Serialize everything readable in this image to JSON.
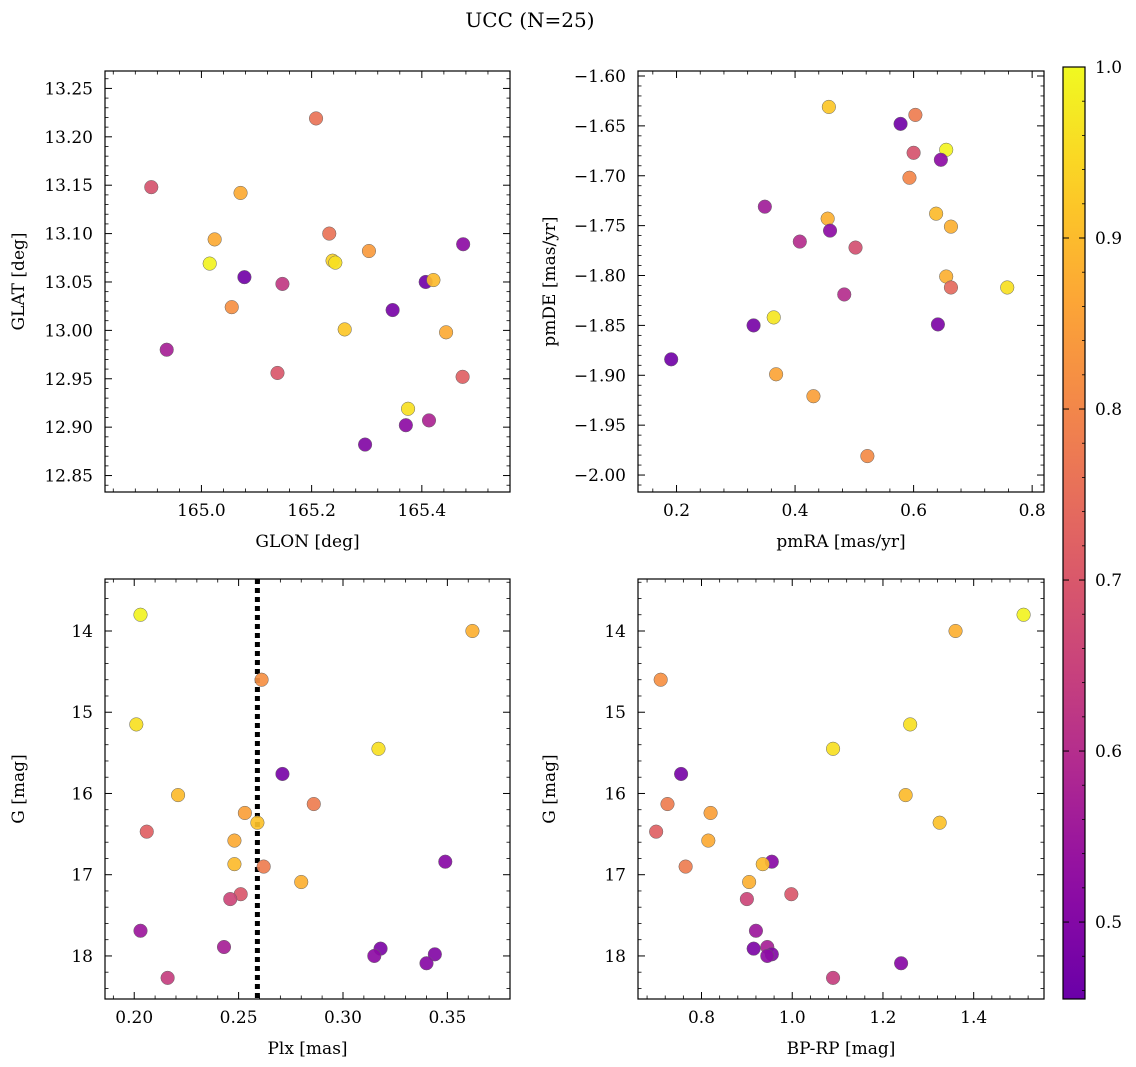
{
  "figure": {
    "title": "UCC (N=25)"
  },
  "colorbar": {
    "colormap": "plasma",
    "range": [
      0.455,
      1.0
    ],
    "ticks": [
      0.5,
      0.6,
      0.7,
      0.8,
      0.9,
      1.0
    ],
    "tick_labels": [
      "0.5",
      "0.6",
      "0.7",
      "0.8",
      "0.9",
      "1.0"
    ]
  },
  "chart_data": [
    {
      "type": "scatter",
      "xlabel": "GLON [deg]",
      "ylabel": "GLAT [deg]",
      "xlim": [
        164.825,
        165.56
      ],
      "ylim": [
        12.833,
        13.268
      ],
      "xticks": [
        165.0,
        165.2,
        165.4
      ],
      "xtick_labels": [
        "165.0",
        "165.2",
        "165.4"
      ],
      "yticks": [
        12.85,
        12.9,
        12.95,
        13.0,
        13.05,
        13.1,
        13.15,
        13.2,
        13.25
      ],
      "ytick_labels": [
        "12.85",
        "12.90",
        "12.95",
        "13.00",
        "13.05",
        "13.10",
        "13.15",
        "13.20",
        "13.25"
      ],
      "points": [
        {
          "x": 165.208,
          "y": 13.219,
          "c": 0.76
        },
        {
          "x": 164.909,
          "y": 13.148,
          "c": 0.69
        },
        {
          "x": 165.071,
          "y": 13.142,
          "c": 0.87
        },
        {
          "x": 165.232,
          "y": 13.1,
          "c": 0.76
        },
        {
          "x": 165.475,
          "y": 13.089,
          "c": 0.52
        },
        {
          "x": 165.024,
          "y": 13.094,
          "c": 0.87
        },
        {
          "x": 165.304,
          "y": 13.082,
          "c": 0.84
        },
        {
          "x": 165.238,
          "y": 13.072,
          "c": 0.94
        },
        {
          "x": 165.015,
          "y": 13.069,
          "c": 0.99
        },
        {
          "x": 165.078,
          "y": 13.055,
          "c": 0.47
        },
        {
          "x": 165.147,
          "y": 13.048,
          "c": 0.63
        },
        {
          "x": 165.407,
          "y": 13.05,
          "c": 0.47
        },
        {
          "x": 165.421,
          "y": 13.052,
          "c": 0.9
        },
        {
          "x": 165.055,
          "y": 13.024,
          "c": 0.82
        },
        {
          "x": 165.347,
          "y": 13.021,
          "c": 0.48
        },
        {
          "x": 165.26,
          "y": 13.001,
          "c": 0.92
        },
        {
          "x": 165.444,
          "y": 12.998,
          "c": 0.87
        },
        {
          "x": 164.937,
          "y": 12.98,
          "c": 0.57
        },
        {
          "x": 165.138,
          "y": 12.956,
          "c": 0.7
        },
        {
          "x": 165.474,
          "y": 12.952,
          "c": 0.72
        },
        {
          "x": 165.375,
          "y": 12.919,
          "c": 0.96
        },
        {
          "x": 165.413,
          "y": 12.907,
          "c": 0.58
        },
        {
          "x": 165.371,
          "y": 12.902,
          "c": 0.52
        },
        {
          "x": 165.297,
          "y": 12.882,
          "c": 0.5
        },
        {
          "x": 165.243,
          "y": 13.07,
          "c": 0.96
        }
      ]
    },
    {
      "type": "scatter",
      "xlabel": "pmRA [mas/yr]",
      "ylabel": "pmDE [mas/yr]",
      "xlim": [
        0.135,
        0.82
      ],
      "ylim": [
        -2.017,
        -1.595
      ],
      "xticks": [
        0.2,
        0.4,
        0.6,
        0.8
      ],
      "xtick_labels": [
        "0.2",
        "0.4",
        "0.6",
        "0.8"
      ],
      "yticks": [
        -2.0,
        -1.95,
        -1.9,
        -1.85,
        -1.8,
        -1.75,
        -1.7,
        -1.65,
        -1.6
      ],
      "ytick_labels": [
        "−2.00",
        "−1.95",
        "−1.90",
        "−1.85",
        "−1.80",
        "−1.75",
        "−1.70",
        "−1.65",
        "−1.60"
      ],
      "points": [
        {
          "x": 0.457,
          "y": -1.631,
          "c": 0.92
        },
        {
          "x": 0.603,
          "y": -1.639,
          "c": 0.78
        },
        {
          "x": 0.578,
          "y": -1.648,
          "c": 0.47
        },
        {
          "x": 0.655,
          "y": -1.674,
          "c": 0.99
        },
        {
          "x": 0.6,
          "y": -1.677,
          "c": 0.69
        },
        {
          "x": 0.646,
          "y": -1.684,
          "c": 0.52
        },
        {
          "x": 0.593,
          "y": -1.702,
          "c": 0.8
        },
        {
          "x": 0.349,
          "y": -1.731,
          "c": 0.56
        },
        {
          "x": 0.638,
          "y": -1.738,
          "c": 0.9
        },
        {
          "x": 0.455,
          "y": -1.743,
          "c": 0.88
        },
        {
          "x": 0.663,
          "y": -1.751,
          "c": 0.88
        },
        {
          "x": 0.459,
          "y": -1.755,
          "c": 0.52
        },
        {
          "x": 0.408,
          "y": -1.766,
          "c": 0.6
        },
        {
          "x": 0.502,
          "y": -1.772,
          "c": 0.68
        },
        {
          "x": 0.655,
          "y": -1.801,
          "c": 0.88
        },
        {
          "x": 0.758,
          "y": -1.812,
          "c": 0.96
        },
        {
          "x": 0.663,
          "y": -1.812,
          "c": 0.74
        },
        {
          "x": 0.483,
          "y": -1.819,
          "c": 0.6
        },
        {
          "x": 0.364,
          "y": -1.842,
          "c": 0.97
        },
        {
          "x": 0.641,
          "y": -1.849,
          "c": 0.49
        },
        {
          "x": 0.33,
          "y": -1.85,
          "c": 0.48
        },
        {
          "x": 0.191,
          "y": -1.884,
          "c": 0.47
        },
        {
          "x": 0.368,
          "y": -1.899,
          "c": 0.86
        },
        {
          "x": 0.431,
          "y": -1.921,
          "c": 0.85
        },
        {
          "x": 0.522,
          "y": -1.981,
          "c": 0.81
        }
      ]
    },
    {
      "type": "scatter",
      "xlabel": "Plx [mas]",
      "ylabel": "G [mag]",
      "xlim": [
        0.186,
        0.38
      ],
      "ylim": [
        18.53,
        13.36
      ],
      "y_inverted": true,
      "xticks": [
        0.2,
        0.25,
        0.3,
        0.35
      ],
      "xtick_labels": [
        "0.20",
        "0.25",
        "0.30",
        "0.35"
      ],
      "yticks": [
        14,
        15,
        16,
        17,
        18
      ],
      "ytick_labels": [
        "14",
        "15",
        "16",
        "17",
        "18"
      ],
      "vline": {
        "x": 0.259,
        "style": "dotted",
        "color": "#000000"
      },
      "points": [
        {
          "x": 0.203,
          "y": 13.8,
          "c": 0.99
        },
        {
          "x": 0.362,
          "y": 14.0,
          "c": 0.88
        },
        {
          "x": 0.261,
          "y": 14.6,
          "c": 0.82
        },
        {
          "x": 0.201,
          "y": 15.15,
          "c": 0.96
        },
        {
          "x": 0.317,
          "y": 15.45,
          "c": 0.96
        },
        {
          "x": 0.271,
          "y": 15.76,
          "c": 0.48
        },
        {
          "x": 0.221,
          "y": 16.02,
          "c": 0.9
        },
        {
          "x": 0.286,
          "y": 16.13,
          "c": 0.78
        },
        {
          "x": 0.253,
          "y": 16.24,
          "c": 0.85
        },
        {
          "x": 0.259,
          "y": 16.36,
          "c": 0.91
        },
        {
          "x": 0.206,
          "y": 16.47,
          "c": 0.72
        },
        {
          "x": 0.248,
          "y": 16.58,
          "c": 0.87
        },
        {
          "x": 0.349,
          "y": 16.84,
          "c": 0.51
        },
        {
          "x": 0.248,
          "y": 16.87,
          "c": 0.9
        },
        {
          "x": 0.262,
          "y": 16.9,
          "c": 0.78
        },
        {
          "x": 0.28,
          "y": 17.09,
          "c": 0.88
        },
        {
          "x": 0.251,
          "y": 17.24,
          "c": 0.7
        },
        {
          "x": 0.246,
          "y": 17.3,
          "c": 0.66
        },
        {
          "x": 0.203,
          "y": 17.69,
          "c": 0.55
        },
        {
          "x": 0.243,
          "y": 17.89,
          "c": 0.57
        },
        {
          "x": 0.318,
          "y": 17.91,
          "c": 0.49
        },
        {
          "x": 0.344,
          "y": 17.98,
          "c": 0.5
        },
        {
          "x": 0.315,
          "y": 18.0,
          "c": 0.52
        },
        {
          "x": 0.34,
          "y": 18.09,
          "c": 0.51
        },
        {
          "x": 0.216,
          "y": 18.27,
          "c": 0.64
        }
      ]
    },
    {
      "type": "scatter",
      "xlabel": "BP-RP [mag]",
      "ylabel": "G [mag]",
      "xlim": [
        0.66,
        1.555
      ],
      "ylim": [
        18.53,
        13.36
      ],
      "y_inverted": true,
      "xticks": [
        0.8,
        1.0,
        1.2,
        1.4
      ],
      "xtick_labels": [
        "0.8",
        "1.0",
        "1.2",
        "1.4"
      ],
      "yticks": [
        14,
        15,
        16,
        17,
        18
      ],
      "ytick_labels": [
        "14",
        "15",
        "16",
        "17",
        "18"
      ],
      "points": [
        {
          "x": 1.51,
          "y": 13.8,
          "c": 0.99
        },
        {
          "x": 1.36,
          "y": 14.0,
          "c": 0.88
        },
        {
          "x": 0.71,
          "y": 14.6,
          "c": 0.82
        },
        {
          "x": 1.26,
          "y": 15.15,
          "c": 0.96
        },
        {
          "x": 1.09,
          "y": 15.45,
          "c": 0.96
        },
        {
          "x": 0.755,
          "y": 15.76,
          "c": 0.48
        },
        {
          "x": 1.25,
          "y": 16.02,
          "c": 0.9
        },
        {
          "x": 0.725,
          "y": 16.13,
          "c": 0.78
        },
        {
          "x": 0.82,
          "y": 16.24,
          "c": 0.85
        },
        {
          "x": 1.325,
          "y": 16.36,
          "c": 0.91
        },
        {
          "x": 0.7,
          "y": 16.47,
          "c": 0.72
        },
        {
          "x": 0.815,
          "y": 16.58,
          "c": 0.87
        },
        {
          "x": 0.955,
          "y": 16.84,
          "c": 0.51
        },
        {
          "x": 0.935,
          "y": 16.87,
          "c": 0.9
        },
        {
          "x": 0.765,
          "y": 16.9,
          "c": 0.78
        },
        {
          "x": 0.905,
          "y": 17.09,
          "c": 0.88
        },
        {
          "x": 0.998,
          "y": 17.24,
          "c": 0.7
        },
        {
          "x": 0.9,
          "y": 17.3,
          "c": 0.66
        },
        {
          "x": 0.92,
          "y": 17.69,
          "c": 0.55
        },
        {
          "x": 0.945,
          "y": 17.89,
          "c": 0.57
        },
        {
          "x": 0.915,
          "y": 17.91,
          "c": 0.49
        },
        {
          "x": 0.955,
          "y": 17.98,
          "c": 0.5
        },
        {
          "x": 0.945,
          "y": 18.0,
          "c": 0.52
        },
        {
          "x": 1.24,
          "y": 18.09,
          "c": 0.51
        },
        {
          "x": 1.09,
          "y": 18.27,
          "c": 0.64
        }
      ]
    }
  ]
}
